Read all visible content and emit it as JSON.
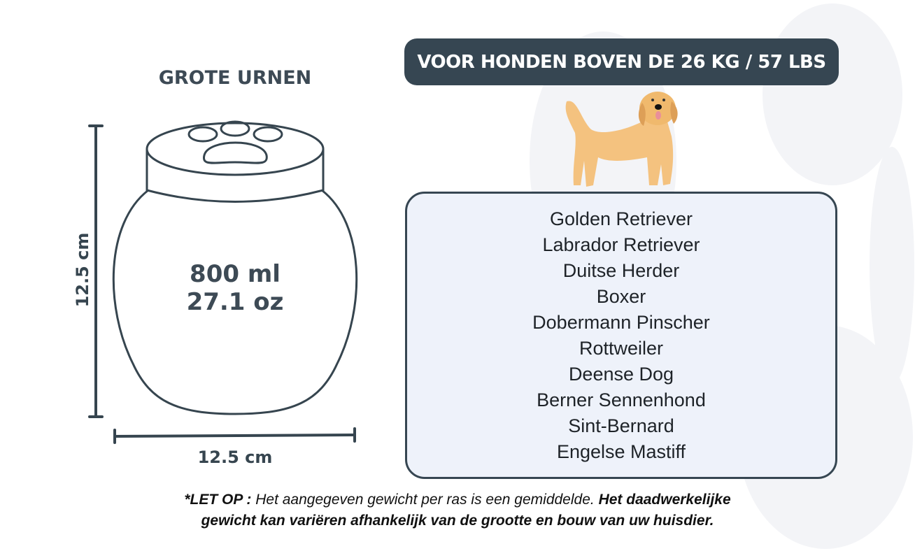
{
  "title": "GROTE URNEN",
  "badge": "VOOR HONDEN BOVEN DE 26 KG / 57 LBS",
  "urn": {
    "volume_ml": "800 ml",
    "volume_oz": "27.1 oz",
    "height": "12.5 cm",
    "width": "12.5 cm"
  },
  "breeds": [
    "Golden Retriever",
    "Labrador Retriever",
    "Duitse Herder",
    "Boxer",
    "Dobermann Pinscher",
    "Rottweiler",
    "Deense Dog",
    "Berner Sennenhond",
    "Sint-Bernard",
    "Engelse Mastiff"
  ],
  "note": {
    "label": "*LET OP :",
    "text1": " Het aangegeven gewicht per ras is een gemiddelde. ",
    "bold1": "Het daadwerkelijke",
    "bold2": "gewicht kan variëren afhankelijk van de grootte en bouw van uw huisdier."
  },
  "colors": {
    "dark": "#364652",
    "box_bg": "#eef2fa",
    "dog": "#f4c27f"
  }
}
